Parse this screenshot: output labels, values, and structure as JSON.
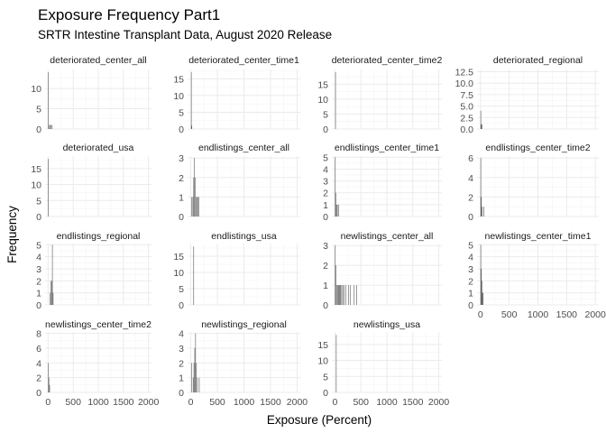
{
  "chart_data": {
    "type": "bar",
    "title": "Exposure Frequency Part1",
    "subtitle": "SRTR Intestine Transplant Data, August 2020 Release",
    "xlabel": "Exposure (Percent)",
    "ylabel": "Frequency",
    "xlim": [
      -60,
      2060
    ],
    "x_ticks": [
      0,
      500,
      1000,
      1500,
      2000
    ],
    "x_tick_labels": [
      "0",
      "500",
      "1000",
      "1500",
      "2000"
    ],
    "grid": true,
    "colors": {
      "bar": "#595959",
      "grid_major": "#ebebeb",
      "grid_minor": "#f3f3f3",
      "text": "#1a1a1a",
      "axis_text": "#4d4d4d"
    },
    "panels": [
      {
        "name": "deteriorated_center_all",
        "ylim": [
          0,
          14.7
        ],
        "y_ticks": [
          0,
          5,
          10
        ],
        "y_tick_labels": [
          "0",
          "5",
          "10"
        ],
        "bars": [
          {
            "x": 5,
            "y": 14
          },
          {
            "x": 15,
            "y": 1
          },
          {
            "x": 35,
            "y": 1
          },
          {
            "x": 60,
            "y": 1
          },
          {
            "x": 80,
            "y": 1
          }
        ]
      },
      {
        "name": "deteriorated_center_time1",
        "ylim": [
          0,
          17.8
        ],
        "y_ticks": [
          0,
          5,
          10,
          15
        ],
        "y_tick_labels": [
          "0",
          "5",
          "10",
          "15"
        ],
        "bars": [
          {
            "x": 10,
            "y": 17
          },
          {
            "x": 20,
            "y": 1
          }
        ]
      },
      {
        "name": "deteriorated_center_time2",
        "ylim": [
          0,
          19.9
        ],
        "y_ticks": [
          0,
          5,
          10,
          15
        ],
        "y_tick_labels": [
          "0",
          "5",
          "10",
          "15"
        ],
        "bars": [
          {
            "x": 10,
            "y": 19
          }
        ]
      },
      {
        "name": "deteriorated_regional",
        "ylim": [
          0,
          13.0
        ],
        "y_ticks": [
          0,
          2.5,
          5.0,
          7.5,
          10.0,
          12.5
        ],
        "y_tick_labels": [
          "0.0",
          "2.5",
          "5.0",
          "7.5",
          "10.0",
          "12.5"
        ],
        "bars": [
          {
            "x": 5,
            "y": 4
          },
          {
            "x": 15,
            "y": 1
          },
          {
            "x": 25,
            "y": 1
          }
        ]
      },
      {
        "name": "deteriorated_usa",
        "ylim": [
          0,
          18.9
        ],
        "y_ticks": [
          0,
          5,
          10,
          15
        ],
        "y_tick_labels": [
          "0",
          "5",
          "10",
          "15"
        ],
        "bars": [
          {
            "x": 5,
            "y": 18
          }
        ]
      },
      {
        "name": "endlistings_center_all",
        "ylim": [
          0,
          3.1
        ],
        "y_ticks": [
          0,
          1,
          2,
          3
        ],
        "y_tick_labels": [
          "0",
          "1",
          "2",
          "3"
        ],
        "bars": [
          {
            "x": 20,
            "y": 1
          },
          {
            "x": 40,
            "y": 1
          },
          {
            "x": 55,
            "y": 2
          },
          {
            "x": 70,
            "y": 3
          },
          {
            "x": 85,
            "y": 2
          },
          {
            "x": 100,
            "y": 1
          },
          {
            "x": 115,
            "y": 1
          },
          {
            "x": 135,
            "y": 1
          },
          {
            "x": 155,
            "y": 1
          }
        ]
      },
      {
        "name": "endlistings_center_time1",
        "ylim": [
          0,
          5.1
        ],
        "y_ticks": [
          0,
          1,
          2,
          3,
          4,
          5
        ],
        "y_tick_labels": [
          "0",
          "1",
          "2",
          "3",
          "4",
          "5"
        ],
        "bars": [
          {
            "x": 5,
            "y": 5
          },
          {
            "x": 15,
            "y": 2
          },
          {
            "x": 30,
            "y": 1
          },
          {
            "x": 45,
            "y": 1
          },
          {
            "x": 70,
            "y": 1
          }
        ]
      },
      {
        "name": "endlistings_center_time2",
        "ylim": [
          0,
          6.2
        ],
        "y_ticks": [
          0,
          2,
          4,
          6
        ],
        "y_tick_labels": [
          "0",
          "2",
          "4",
          "6"
        ],
        "bars": [
          {
            "x": 5,
            "y": 6
          },
          {
            "x": 15,
            "y": 2
          },
          {
            "x": 30,
            "y": 1
          },
          {
            "x": 60,
            "y": 1
          }
        ]
      },
      {
        "name": "endlistings_regional",
        "ylim": [
          0,
          5.1
        ],
        "y_ticks": [
          0,
          1,
          2,
          3,
          4,
          5
        ],
        "y_tick_labels": [
          "0",
          "1",
          "2",
          "3",
          "4",
          "5"
        ],
        "bars": [
          {
            "x": 40,
            "y": 1
          },
          {
            "x": 55,
            "y": 2
          },
          {
            "x": 70,
            "y": 2
          },
          {
            "x": 85,
            "y": 5
          },
          {
            "x": 100,
            "y": 1
          }
        ]
      },
      {
        "name": "endlistings_usa",
        "ylim": [
          0,
          18.9
        ],
        "y_ticks": [
          0,
          5,
          10,
          15
        ],
        "y_tick_labels": [
          "0",
          "5",
          "10",
          "15"
        ],
        "bars": [
          {
            "x": 55,
            "y": 18
          }
        ]
      },
      {
        "name": "newlistings_center_all",
        "ylim": [
          0,
          3.1
        ],
        "y_ticks": [
          0,
          1,
          2,
          3
        ],
        "y_tick_labels": [
          "0",
          "1",
          "2",
          "3"
        ],
        "bars": [
          {
            "x": 5,
            "y": 3
          },
          {
            "x": 20,
            "y": 2
          },
          {
            "x": 35,
            "y": 1
          },
          {
            "x": 50,
            "y": 1
          },
          {
            "x": 65,
            "y": 1
          },
          {
            "x": 80,
            "y": 1
          },
          {
            "x": 95,
            "y": 1
          },
          {
            "x": 110,
            "y": 1
          },
          {
            "x": 130,
            "y": 1
          },
          {
            "x": 150,
            "y": 1
          },
          {
            "x": 175,
            "y": 1
          },
          {
            "x": 210,
            "y": 1
          },
          {
            "x": 260,
            "y": 1
          },
          {
            "x": 300,
            "y": 1
          },
          {
            "x": 370,
            "y": 1
          },
          {
            "x": 420,
            "y": 1
          }
        ]
      },
      {
        "name": "newlistings_center_time1",
        "ylim": [
          0,
          5.1
        ],
        "y_ticks": [
          0,
          1,
          2,
          3,
          4,
          5
        ],
        "y_tick_labels": [
          "0",
          "1",
          "2",
          "3",
          "4",
          "5"
        ],
        "bars": [
          {
            "x": 5,
            "y": 5
          },
          {
            "x": 15,
            "y": 3
          },
          {
            "x": 25,
            "y": 2
          },
          {
            "x": 35,
            "y": 1
          },
          {
            "x": 45,
            "y": 1
          }
        ]
      },
      {
        "name": "newlistings_center_time2",
        "ylim": [
          0,
          8.2
        ],
        "y_ticks": [
          0,
          2,
          4,
          6,
          8
        ],
        "y_tick_labels": [
          "0",
          "2",
          "4",
          "6",
          "8"
        ],
        "bars": [
          {
            "x": 5,
            "y": 4
          },
          {
            "x": 15,
            "y": 2
          },
          {
            "x": 30,
            "y": 1
          }
        ]
      },
      {
        "name": "newlistings_regional",
        "ylim": [
          0,
          4.1
        ],
        "y_ticks": [
          0,
          1,
          2,
          3,
          4
        ],
        "y_tick_labels": [
          "0",
          "1",
          "2",
          "3",
          "4"
        ],
        "bars": [
          {
            "x": 20,
            "y": 2
          },
          {
            "x": 45,
            "y": 1
          },
          {
            "x": 60,
            "y": 2
          },
          {
            "x": 75,
            "y": 3
          },
          {
            "x": 90,
            "y": 4
          },
          {
            "x": 105,
            "y": 2
          },
          {
            "x": 125,
            "y": 1
          },
          {
            "x": 160,
            "y": 1
          }
        ]
      },
      {
        "name": "newlistings_usa",
        "ylim": [
          0,
          18.9
        ],
        "y_ticks": [
          0,
          5,
          10,
          15
        ],
        "y_tick_labels": [
          "0",
          "5",
          "10",
          "15"
        ],
        "bars": [
          {
            "x": 25,
            "y": 18
          }
        ]
      }
    ]
  }
}
